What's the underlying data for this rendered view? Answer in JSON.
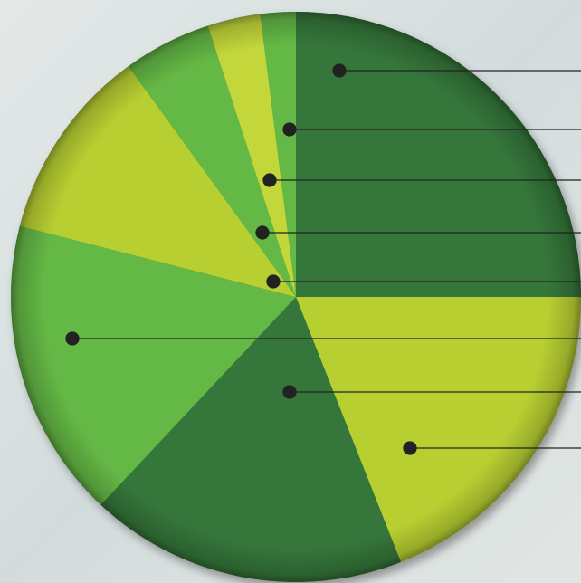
{
  "chart_data": {
    "type": "pie",
    "values": [
      25,
      19,
      18,
      17,
      11,
      5,
      3,
      2
    ],
    "colors": [
      "#35763a",
      "#b8cf32",
      "#35763a",
      "#64b845",
      "#b8cf32",
      "#64b845",
      "#c3d73a",
      "#64b845"
    ]
  }
}
